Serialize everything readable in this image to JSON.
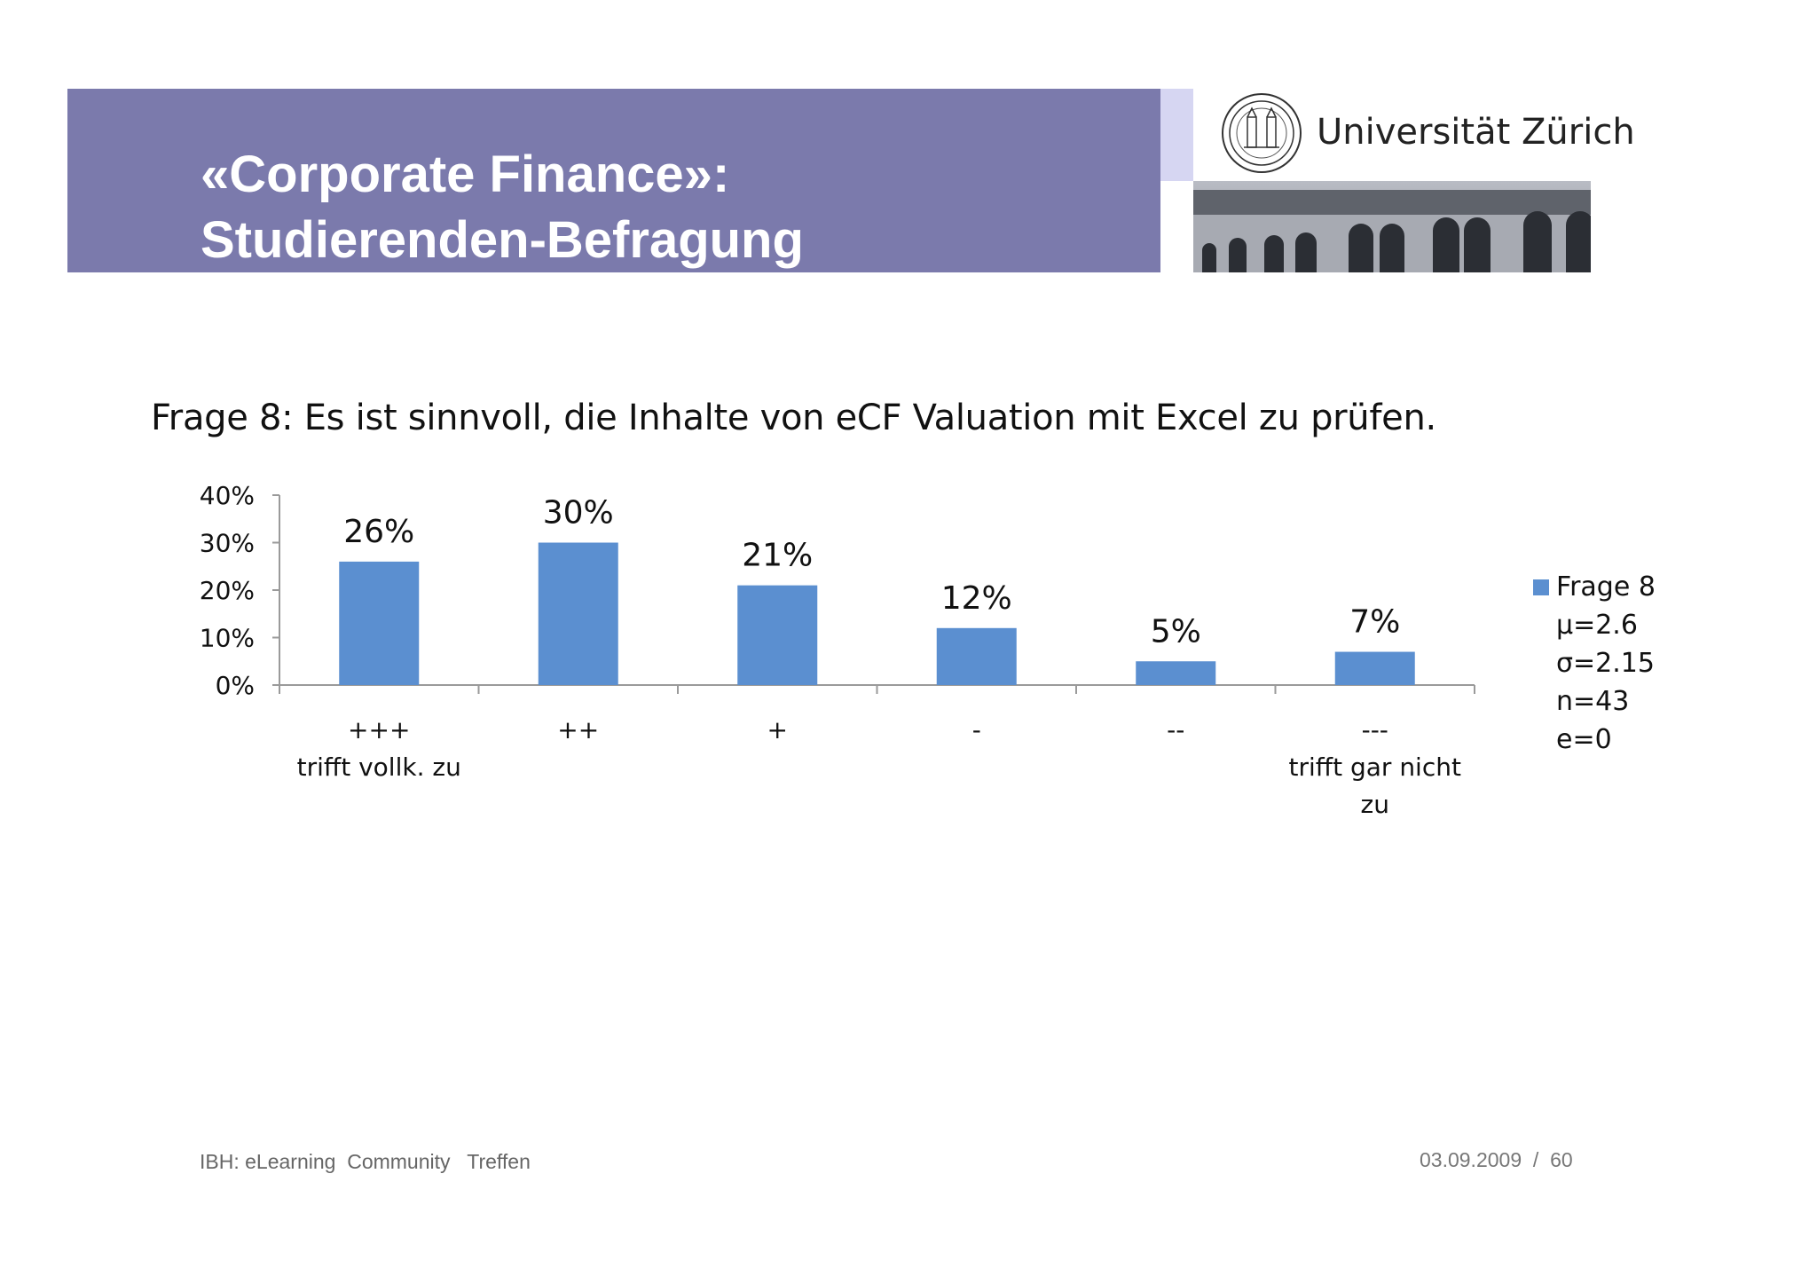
{
  "header": {
    "title_line1": "«Corporate Finance»:",
    "title_line2": "Studierenden-Befragung",
    "university": "Universität Zürich",
    "colors": {
      "band": "#7b7aac",
      "accent": "#d6d6f2"
    }
  },
  "question": "Frage 8: Es ist sinnvoll, die Inhalte von eCF Valuation mit Excel zu prüfen.",
  "chart_data": {
    "type": "bar",
    "title": "",
    "xlabel": "",
    "ylabel": "",
    "ylim": [
      0,
      40
    ],
    "yticks": [
      "0%",
      "10%",
      "20%",
      "30%",
      "40%"
    ],
    "categories": [
      "+++\ntrifft vollk. zu",
      "++",
      "+",
      "-",
      "--",
      "---\ntrifft gar nicht\nzu"
    ],
    "series": [
      {
        "name": "Frage 8",
        "values": [
          26,
          30,
          21,
          12,
          5,
          7
        ],
        "labels": [
          "26%",
          "30%",
          "21%",
          "12%",
          "5%",
          "7%"
        ],
        "color": "#5b8fd0"
      }
    ],
    "grid": false,
    "legend_position": "right"
  },
  "legend": {
    "series_name": "Frage 8",
    "stats": [
      "µ=2.6",
      "σ=2.15",
      "n=43",
      "e=0"
    ]
  },
  "footer": {
    "left": "IBH: eLearning  Community   Treffen",
    "right": "03.09.2009  /  60"
  }
}
